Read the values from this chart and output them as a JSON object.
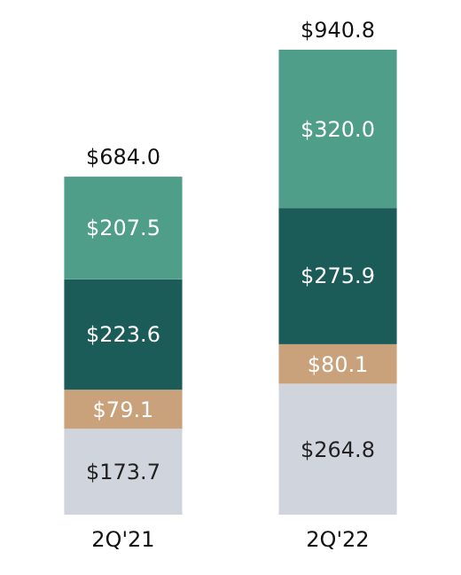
{
  "chart_data": {
    "type": "bar",
    "stacked": true,
    "categories": [
      "2Q'21",
      "2Q'22"
    ],
    "series": [
      {
        "color": "#d0d4dc",
        "values": [
          173.7,
          264.8
        ],
        "value_labels": [
          "$173.7",
          "$264.8"
        ]
      },
      {
        "color": "#c9a27c",
        "values": [
          79.1,
          80.1
        ],
        "value_labels": [
          "$79.1",
          "$80.1"
        ]
      },
      {
        "color": "#1b5b58",
        "values": [
          223.6,
          275.9
        ],
        "value_labels": [
          "$223.6",
          "$275.9"
        ]
      },
      {
        "color": "#4f9e89",
        "values": [
          207.5,
          320.0
        ],
        "value_labels": [
          "$207.5",
          "$320.0"
        ]
      }
    ],
    "totals": [
      "$684.0",
      "$940.8"
    ]
  }
}
